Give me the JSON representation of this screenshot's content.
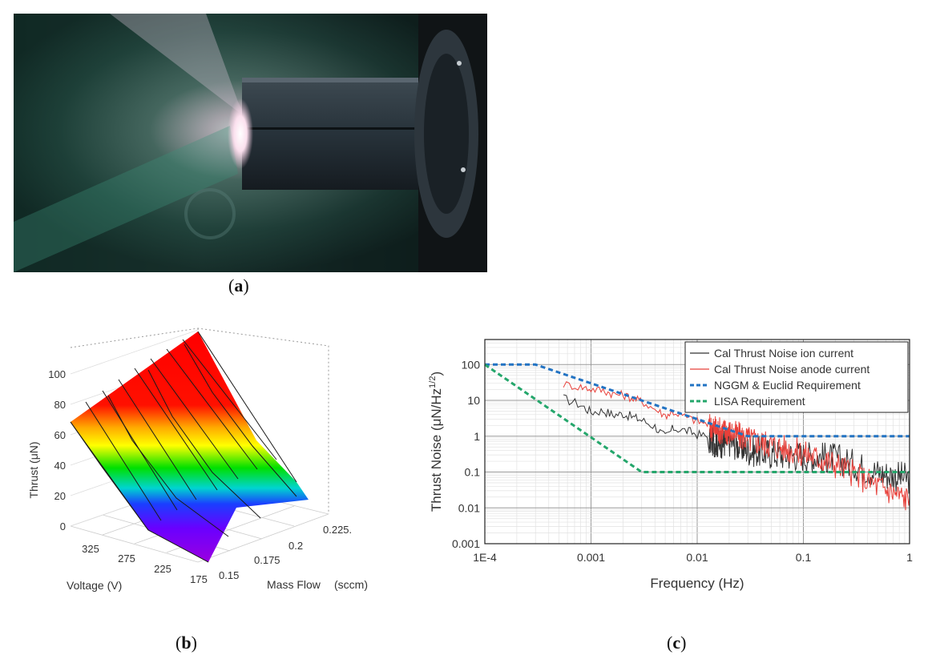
{
  "panels": {
    "a": {
      "label": "(a)",
      "letter": "a"
    },
    "b": {
      "label": "(b)",
      "letter": "b"
    },
    "c": {
      "label": "(c)",
      "letter": "c"
    }
  },
  "photo": {
    "description_icon": "thruster-photo"
  },
  "chart_data": [
    {
      "type": "surface3d",
      "panel": "b",
      "zlabel": "Thrust (μN)",
      "xlabel": "Voltage (V)",
      "ylabel": "Mass Flow",
      "ylabel_unit": "(sccm)",
      "z_ticks": [
        "0",
        "20",
        "40",
        "60",
        "80",
        "100"
      ],
      "voltage_ticks": [
        "325",
        "275",
        "225",
        "175"
      ],
      "massflow_ticks": [
        "0.15",
        "0.175",
        "0.2",
        "0.225."
      ],
      "voltage_values": [
        350,
        325,
        300,
        275,
        250,
        225,
        200,
        175,
        150
      ],
      "massflow_values": [
        0.15,
        0.175,
        0.2,
        0.225
      ],
      "thrust_at_corners": {
        "v350_m0.15": 70,
        "v350_m0.225": 120,
        "v150_m0.15": 5,
        "v150_m0.225": 15
      },
      "colormap": [
        "#ff0000",
        "#ffff00",
        "#00ff00",
        "#00ffff",
        "#0000ff",
        "#8000ff"
      ]
    },
    {
      "type": "line",
      "panel": "c",
      "xlabel": "Frequency (Hz)",
      "ylabel": "Thrust Noise (μN/Hz",
      "ylabel_sup": "1/2",
      "ylabel_end": ")",
      "xscale": "log",
      "yscale": "log",
      "xlim": [
        0.0001,
        1
      ],
      "ylim": [
        0.001,
        500
      ],
      "x_ticks": [
        "1E-4",
        "0.001",
        "0.01",
        "0.1",
        "1"
      ],
      "y_ticks": [
        "0.001",
        "0.01",
        "0.1",
        "1",
        "10",
        "100"
      ],
      "grid": true,
      "legend_position": "top-right",
      "series": [
        {
          "name": "Cal Thrust Noise ion current",
          "color": "#333333",
          "style": "solid",
          "x": [
            0.00055,
            0.0008,
            0.001,
            0.0013,
            0.0016,
            0.002,
            0.0025,
            0.003,
            0.004,
            0.005,
            0.006,
            0.008,
            0.01,
            0.013,
            0.016,
            0.02,
            0.03,
            0.05,
            0.1,
            0.2,
            0.5,
            1
          ],
          "y": [
            12,
            8,
            5,
            5.5,
            4.2,
            4.5,
            3.6,
            3,
            2,
            1,
            1.8,
            1.5,
            1.2,
            1.0,
            0.8,
            0.9,
            0.5,
            0.4,
            0.35,
            0.3,
            0.12,
            0.08
          ]
        },
        {
          "name": "Cal Thrust Noise anode current",
          "color": "#e8403a",
          "style": "solid",
          "x": [
            0.00055,
            0.0008,
            0.001,
            0.0013,
            0.0016,
            0.002,
            0.0025,
            0.003,
            0.004,
            0.005,
            0.006,
            0.008,
            0.01,
            0.013,
            0.016,
            0.02,
            0.03,
            0.05,
            0.1,
            0.2,
            0.5,
            1
          ],
          "y": [
            30,
            25,
            22,
            20,
            16,
            15,
            12,
            10,
            6,
            4,
            5,
            3.5,
            2.8,
            2.2,
            1.8,
            1.6,
            1.0,
            0.7,
            0.4,
            0.2,
            0.05,
            0.02
          ]
        },
        {
          "name": "NGGM & Euclid Requirement",
          "color": "#2273c3",
          "style": "dashed",
          "x": [
            0.0001,
            0.0003,
            0.03,
            1
          ],
          "y": [
            100,
            100,
            1,
            1
          ]
        },
        {
          "name": "LISA Requirement",
          "color": "#24a66b",
          "style": "dashed",
          "x": [
            0.0001,
            0.003,
            1
          ],
          "y": [
            100,
            0.1,
            0.1
          ]
        }
      ]
    }
  ]
}
